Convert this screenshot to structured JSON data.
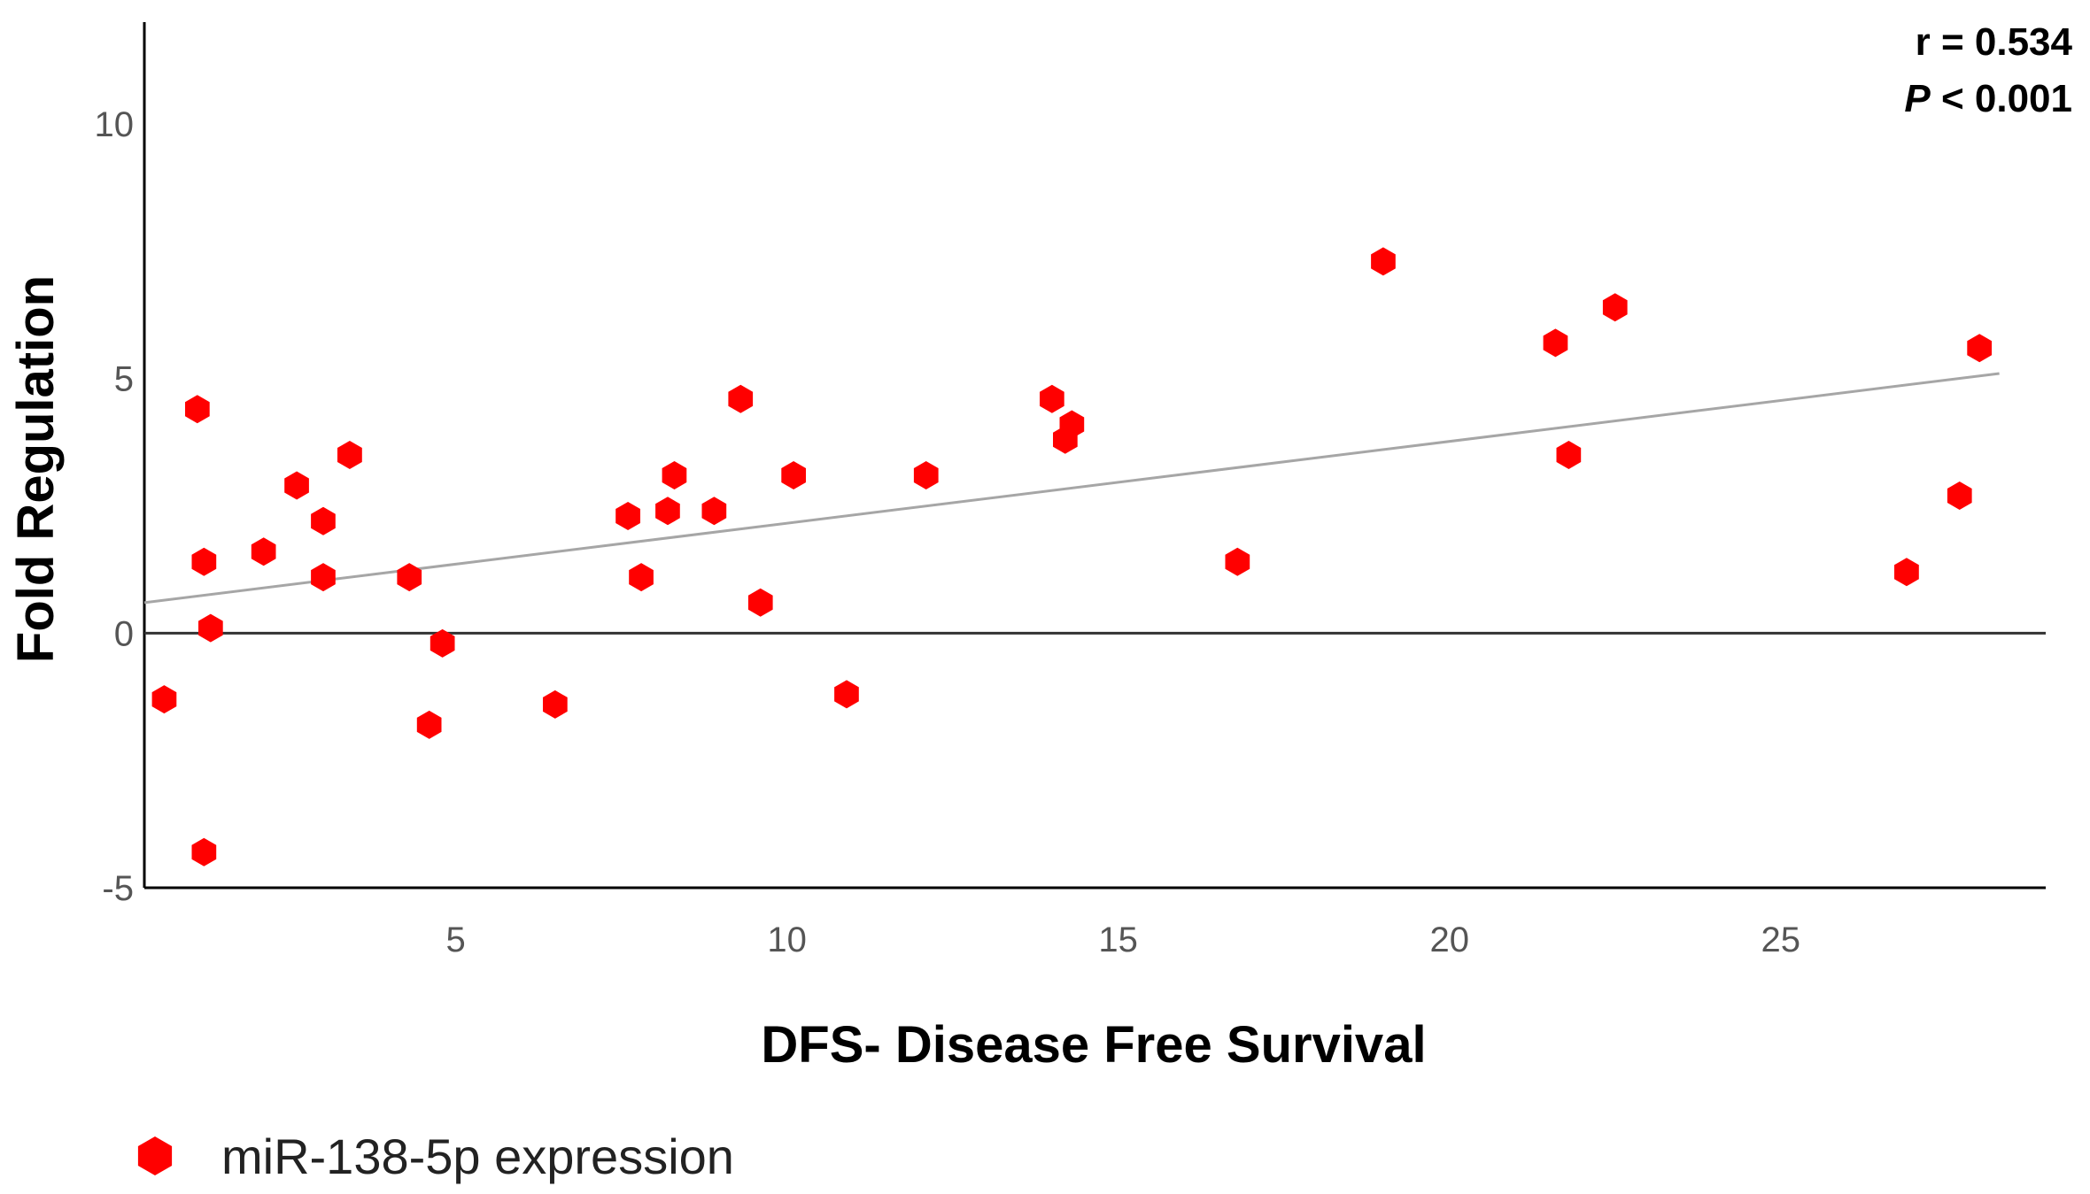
{
  "chart_data": {
    "type": "scatter",
    "xlabel": "DFS- Disease Free Survival",
    "ylabel": "Fold Regulation",
    "xlim": [
      0.3,
      29.0
    ],
    "ylim": [
      -5,
      12
    ],
    "x_ticks": [
      5,
      10,
      15,
      20,
      25
    ],
    "y_ticks": [
      10,
      5,
      0,
      -5
    ],
    "grid": false,
    "reference_line_y": 0,
    "annotation": {
      "r_text": "r = 0.534",
      "p_label": "P",
      "p_rest": " < 0.001"
    },
    "fit_line": {
      "x": [
        0.3,
        28.3
      ],
      "y": [
        0.6,
        5.1
      ]
    },
    "series": [
      {
        "name": "miR-138-5p expression",
        "color": "#ff0000",
        "marker": "hexagon",
        "points": [
          {
            "x": 0.6,
            "y": -1.3
          },
          {
            "x": 1.1,
            "y": 4.4
          },
          {
            "x": 1.2,
            "y": 1.4
          },
          {
            "x": 1.3,
            "y": 0.1
          },
          {
            "x": 1.2,
            "y": -4.3
          },
          {
            "x": 2.1,
            "y": 1.6
          },
          {
            "x": 2.6,
            "y": 2.9
          },
          {
            "x": 3.0,
            "y": 2.2
          },
          {
            "x": 3.0,
            "y": 1.1
          },
          {
            "x": 3.4,
            "y": 3.5
          },
          {
            "x": 4.3,
            "y": 1.1
          },
          {
            "x": 4.6,
            "y": -1.8
          },
          {
            "x": 4.8,
            "y": -0.2
          },
          {
            "x": 6.5,
            "y": -1.4
          },
          {
            "x": 7.6,
            "y": 2.3
          },
          {
            "x": 7.8,
            "y": 1.1
          },
          {
            "x": 8.2,
            "y": 2.4
          },
          {
            "x": 8.3,
            "y": 3.1
          },
          {
            "x": 8.9,
            "y": 2.4
          },
          {
            "x": 9.3,
            "y": 4.6
          },
          {
            "x": 9.6,
            "y": 0.6
          },
          {
            "x": 10.1,
            "y": 3.1
          },
          {
            "x": 10.9,
            "y": -1.2
          },
          {
            "x": 12.1,
            "y": 3.1
          },
          {
            "x": 14.0,
            "y": 4.6
          },
          {
            "x": 14.2,
            "y": 3.8
          },
          {
            "x": 14.3,
            "y": 4.1
          },
          {
            "x": 16.8,
            "y": 1.4
          },
          {
            "x": 19.0,
            "y": 7.3
          },
          {
            "x": 21.6,
            "y": 5.7
          },
          {
            "x": 21.8,
            "y": 3.5
          },
          {
            "x": 22.5,
            "y": 6.4
          },
          {
            "x": 26.9,
            "y": 1.2
          },
          {
            "x": 27.7,
            "y": 2.7
          },
          {
            "x": 28.0,
            "y": 5.6
          }
        ]
      }
    ]
  },
  "legend": {
    "label": "miR-138-5p expression",
    "color": "#ff0000"
  }
}
